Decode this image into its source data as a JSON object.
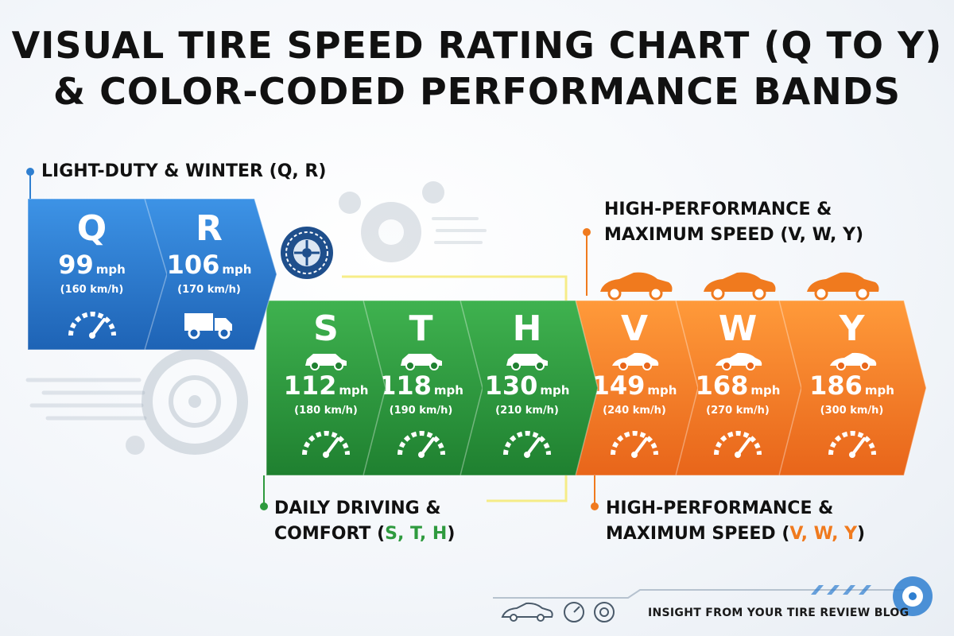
{
  "title": {
    "line1": "VISUAL TIRE SPEED RATING CHART (Q TO Y)",
    "line2": "& COLOR-CODED PERFORMANCE BANDS"
  },
  "groups": {
    "light": {
      "label": "LIGHT-DUTY & WINTER (Q, R)",
      "color": "#2f7fd0"
    },
    "daily": {
      "line1": "DAILY DRIVING &",
      "line2_prefix": "COMFORT (",
      "line2_letters": "S, T, H",
      "line2_suffix": ")",
      "color": "#2e9a3e"
    },
    "high_top": {
      "line1": "HIGH-PERFORMANCE &",
      "line2": "MAXIMUM SPEED (V, W, Y)"
    },
    "high_bottom": {
      "line1": "HIGH-PERFORMANCE &",
      "line2_prefix": "MAXIMUM SPEED (",
      "line2_letters": "V, W, Y",
      "line2_suffix": ")",
      "color": "#f07a1e"
    }
  },
  "ratings": [
    {
      "letter": "Q",
      "mph": "99",
      "unit": "mph",
      "kmh": "(160 km/h)",
      "group": "light",
      "icon": "speedometer-icon"
    },
    {
      "letter": "R",
      "mph": "106",
      "unit": "mph",
      "kmh": "(170 km/h)",
      "group": "light",
      "icon": "truck-icon"
    },
    {
      "letter": "S",
      "mph": "112",
      "unit": "mph",
      "kmh": "(180 km/h)",
      "group": "daily",
      "icon": "hatchback-icon"
    },
    {
      "letter": "T",
      "mph": "118",
      "unit": "mph",
      "kmh": "(190 km/h)",
      "group": "daily",
      "icon": "hatchback-icon"
    },
    {
      "letter": "H",
      "mph": "130",
      "unit": "mph",
      "kmh": "(210 km/h)",
      "group": "daily",
      "icon": "sedan-icon"
    },
    {
      "letter": "V",
      "mph": "149",
      "unit": "mph",
      "kmh": "(240 km/h)",
      "group": "high",
      "icon": "sports-car-icon"
    },
    {
      "letter": "W",
      "mph": "168",
      "unit": "mph",
      "kmh": "(270 km/h)",
      "group": "high",
      "icon": "sports-car-icon"
    },
    {
      "letter": "Y",
      "mph": "186",
      "unit": "mph",
      "kmh": "(300 km/h)",
      "group": "high",
      "icon": "sports-car-icon"
    }
  ],
  "footer": {
    "text": "INSIGHT FROM YOUR TIRE REVIEW BLOG"
  },
  "colors": {
    "blue": "#2f7fd0",
    "green": "#2e9a3e",
    "orange": "#f07a1e"
  }
}
